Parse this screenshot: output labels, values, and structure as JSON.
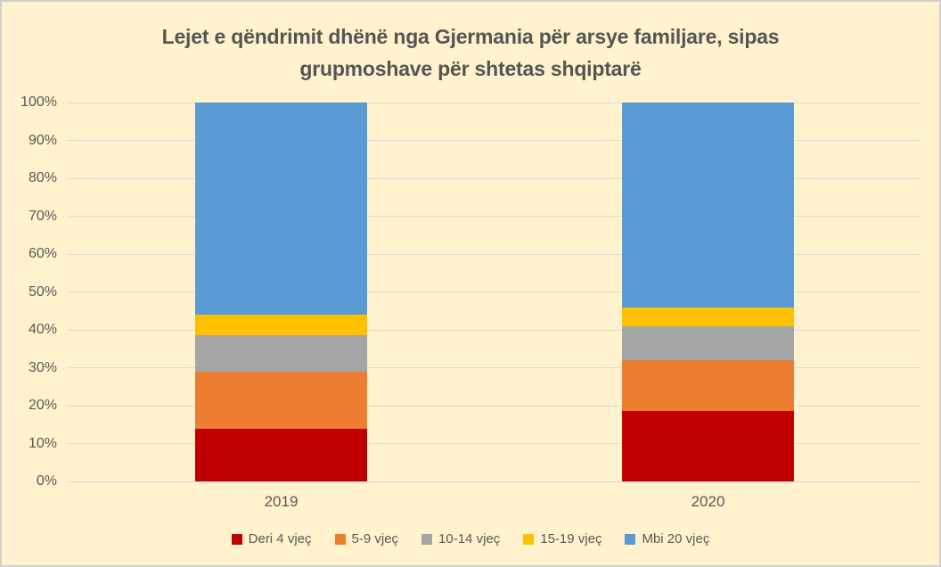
{
  "title": {
    "line1": "Lejet e qëndrimit dhënë nga Gjermania për arsye familjare, sipas",
    "line2": "grupmoshave për shtetas shqiptarë"
  },
  "colors": {
    "background": "#FFF2CC",
    "border": "#CFCFCF",
    "gridline": "#D9D9D9",
    "text": "#595959",
    "title_text": "#555555"
  },
  "chart_data": {
    "type": "bar",
    "variant": "stacked-100-percent",
    "title": "Lejet e qëndrimit dhënë nga Gjermania për arsye familjare, sipas grupmoshave për shtetas shqiptarë",
    "categories": [
      "2019",
      "2020"
    ],
    "series": [
      {
        "name": "Deri 4 vjeç",
        "color": "#C00000",
        "values": [
          14,
          18.5
        ]
      },
      {
        "name": "5-9 vjeç",
        "color": "#ED7D31",
        "values": [
          15,
          13.5
        ]
      },
      {
        "name": "10-14 vjeç",
        "color": "#A5A5A5",
        "values": [
          9.5,
          9
        ]
      },
      {
        "name": "15-19 vjeç",
        "color": "#FFC000",
        "values": [
          5.5,
          5
        ]
      },
      {
        "name": "Mbi 20 vjeç",
        "color": "#5B9BD5",
        "values": [
          56,
          54
        ]
      }
    ],
    "y_ticks": [
      "0%",
      "10%",
      "20%",
      "30%",
      "40%",
      "50%",
      "60%",
      "70%",
      "80%",
      "90%",
      "100%"
    ],
    "ylim": [
      0,
      100
    ],
    "unit": "%",
    "grid": true,
    "legend_position": "bottom"
  }
}
